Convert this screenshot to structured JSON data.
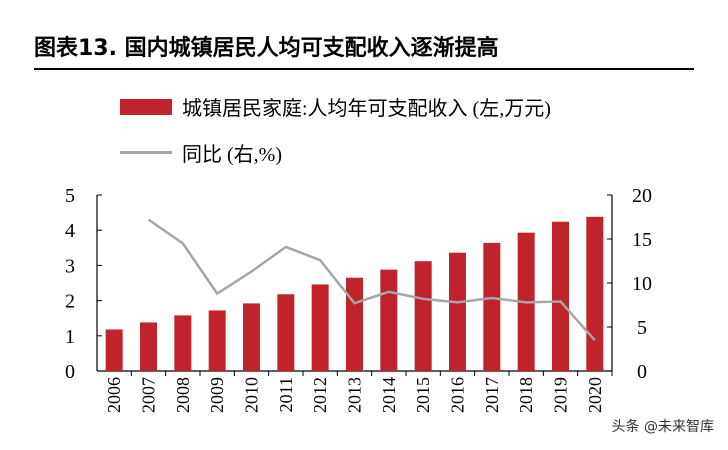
{
  "title": "图表13. 国内城镇居民人均可支配收入逐渐提高",
  "watermark": "头条 @未来智库",
  "chart_data": {
    "type": "bar+line",
    "categories": [
      "2006",
      "2007",
      "2008",
      "2009",
      "2010",
      "2011",
      "2012",
      "2013",
      "2014",
      "2015",
      "2016",
      "2017",
      "2018",
      "2019",
      "2020"
    ],
    "series": [
      {
        "name": "城镇居民家庭:人均年可支配收入 (左,万元)",
        "type": "bar",
        "axis": "left",
        "color": "#c0232c",
        "values": [
          1.18,
          1.38,
          1.58,
          1.72,
          1.92,
          2.18,
          2.46,
          2.65,
          2.88,
          3.12,
          3.36,
          3.64,
          3.93,
          4.24,
          4.38
        ]
      },
      {
        "name": "同比 (右,%)",
        "type": "line",
        "axis": "right",
        "color": "#a6a6a6",
        "values": [
          null,
          17.2,
          14.5,
          8.8,
          11.3,
          14.1,
          12.6,
          7.7,
          9.0,
          8.2,
          7.8,
          8.3,
          7.8,
          7.9,
          3.5
        ]
      }
    ],
    "left_ylim": [
      0,
      5
    ],
    "left_ticks": [
      "0",
      "1",
      "2",
      "3",
      "4",
      "5"
    ],
    "right_ylim": [
      0,
      20
    ],
    "right_ticks": [
      "0",
      "5",
      "10",
      "15",
      "20"
    ],
    "legend": "top",
    "grid": false
  }
}
